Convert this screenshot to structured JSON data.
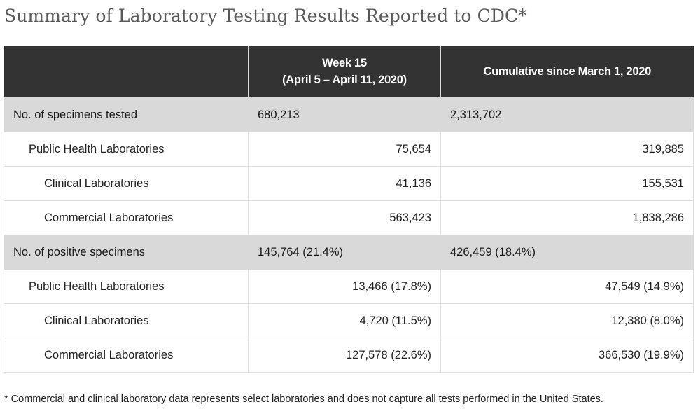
{
  "title": "Summary of Laboratory Testing Results Reported to CDC*",
  "table": {
    "headers": [
      "",
      "Week 15",
      "(April 5 – April 11, 2020)",
      "Cumulative since March 1, 2020"
    ],
    "rows": [
      {
        "label": "No. of specimens tested",
        "week": "680,213",
        "cumulative": "2,313,702"
      },
      {
        "label": "Public Health Laboratories",
        "week": "75,654",
        "cumulative": "319,885"
      },
      {
        "label": "Clinical Laboratories",
        "week": "41,136",
        "cumulative": "155,531"
      },
      {
        "label": "Commercial Laboratories",
        "week": "563,423",
        "cumulative": "1,838,286"
      },
      {
        "label": "No. of positive specimens",
        "week": "145,764 (21.4%)",
        "cumulative": "426,459 (18.4%)"
      },
      {
        "label": "Public Health Laboratories",
        "week": "13,466 (17.8%)",
        "cumulative": "47,549 (14.9%)"
      },
      {
        "label": "Clinical Laboratories",
        "week": "4,720 (11.5%)",
        "cumulative": "12,380 (8.0%)"
      },
      {
        "label": "Commercial Laboratories",
        "week": "127,578 (22.6%)",
        "cumulative": "366,530 (19.9%)"
      }
    ]
  },
  "footnote": "* Commercial and clinical laboratory data represents select laboratories and does not capture all tests performed in the United States.",
  "colors": {
    "header_bg": "#333333",
    "group_bg": "#d9d9d9",
    "title_color": "#595959"
  }
}
